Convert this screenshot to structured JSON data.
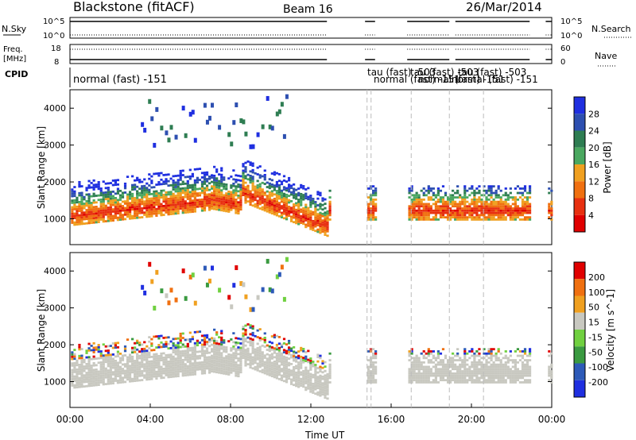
{
  "header": {
    "station": "Blackstone (fitACF)",
    "beam": "Beam 16",
    "date": "26/Mar/2014"
  },
  "top_panels": {
    "nsky_label": "N.Sky",
    "nsky_ticks": [
      "10^5",
      "10^0"
    ],
    "nsearch_label": "N.Search",
    "nsearch_ticks": [
      "10^5",
      "10^0"
    ],
    "freq_label_1": "Freq.",
    "freq_label_2": "[MHz]",
    "freq_ticks": [
      "18",
      "8"
    ],
    "nave_label": "Nave",
    "nave_ticks": [
      "60",
      "0"
    ],
    "cpid_label": "CPID",
    "cpid_entries": [
      "normal (fast) -151",
      "tau (fast) -503",
      "normal (fast) -151",
      "tau (fast) -503",
      "normal (fast) -151",
      "tau (fast) -503",
      "normal (fast) -151"
    ]
  },
  "colors": {
    "power_scale": [
      "#1f2fe0",
      "#2d4fb0",
      "#2e7d52",
      "#4aa860",
      "#f0a020",
      "#f07010",
      "#e83010",
      "#e00000"
    ],
    "velocity_scale": [
      "#1f2fe0",
      "#2d5ab8",
      "#3a9a40",
      "#70d040",
      "#c8c8c0",
      "#f0a020",
      "#f07010",
      "#e00000"
    ],
    "ground_scatter": "#c8c8c0"
  },
  "chart_data": [
    {
      "type": "heatmap",
      "panel": "power",
      "ylabel": "Slant Range [km]",
      "yticks": [
        "1000",
        "2000",
        "3000",
        "4000"
      ],
      "ylim": [
        300,
        4500
      ],
      "xlim_hours": [
        0,
        24
      ],
      "colorbar_label": "Power [dB]",
      "colorbar_ticks": [
        "28",
        "24",
        "20",
        "16",
        "12",
        "8",
        "4"
      ],
      "clim": [
        0,
        32
      ],
      "data_gaps_ut": [
        [
          12.9,
          14.7
        ],
        [
          15.2,
          16.8
        ],
        [
          22.9,
          23.7
        ]
      ]
    },
    {
      "type": "heatmap",
      "panel": "velocity",
      "ylabel": "Slant Range [km]",
      "yticks": [
        "1000",
        "2000",
        "3000",
        "4000"
      ],
      "ylim": [
        300,
        4500
      ],
      "xlim_hours": [
        0,
        24
      ],
      "colorbar_label": "Velocity [m s^-1]",
      "colorbar_ticks": [
        "200",
        "100",
        "50",
        "15",
        "-15",
        "-50",
        "-100",
        "-200"
      ],
      "clim": [
        -250,
        250
      ],
      "data_gaps_ut": [
        [
          12.9,
          14.7
        ],
        [
          15.2,
          16.8
        ],
        [
          22.9,
          23.7
        ]
      ]
    }
  ],
  "x_axis": {
    "label": "Time UT",
    "ticks": [
      "00:00",
      "04:00",
      "08:00",
      "12:00",
      "16:00",
      "20:00",
      "00:00"
    ]
  }
}
